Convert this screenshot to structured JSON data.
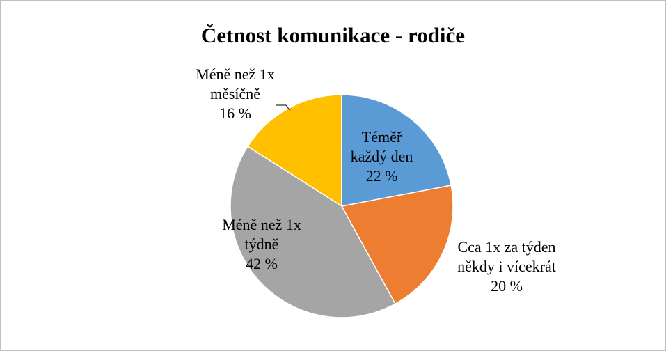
{
  "chart_data": {
    "type": "pie",
    "title": "Četnost komunikace - rodiče",
    "categories": [
      "Téměř každý den",
      "Cca 1x za týden někdy i vícekrát",
      "Méně než 1x týdně",
      "Méně než 1x měsíčně"
    ],
    "values": [
      22,
      20,
      42,
      16
    ],
    "value_labels": [
      "22 %",
      "20 %",
      "42 %",
      "16 %"
    ],
    "colors": [
      "#5b9bd5",
      "#ed7d31",
      "#a5a5a5",
      "#ffc000"
    ]
  }
}
